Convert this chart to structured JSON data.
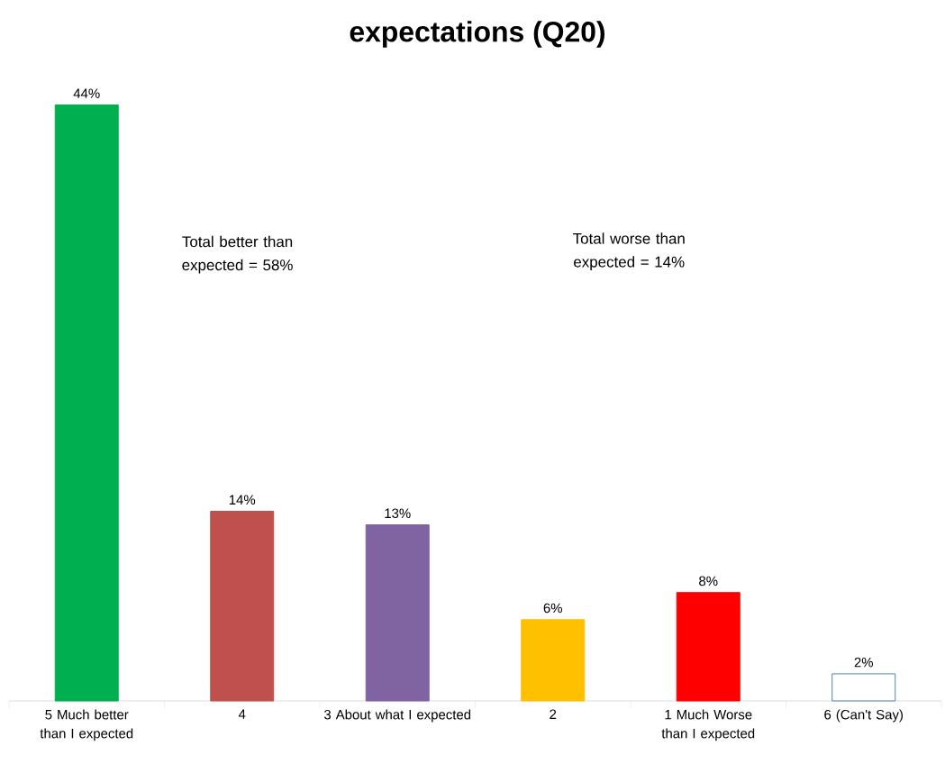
{
  "chart_data": {
    "type": "bar",
    "title": "expectations (Q20)",
    "categories": [
      "5 Much better than I expected",
      "4",
      "3 About what I expected",
      "2",
      "1 Much Worse than I expected",
      "6 (Can't Say)"
    ],
    "values": [
      44,
      14,
      13,
      6,
      8,
      2
    ],
    "value_labels": [
      "44%",
      "14%",
      "13%",
      "6%",
      "8%",
      "2%"
    ],
    "colors": [
      "#00b050",
      "#c0504d",
      "#8064a2",
      "#ffc000",
      "#ff0000",
      "#ffffff"
    ],
    "annotations": [
      "Total better than expected = 58%",
      "Total worse than expected = 14%"
    ],
    "grid": false
  }
}
